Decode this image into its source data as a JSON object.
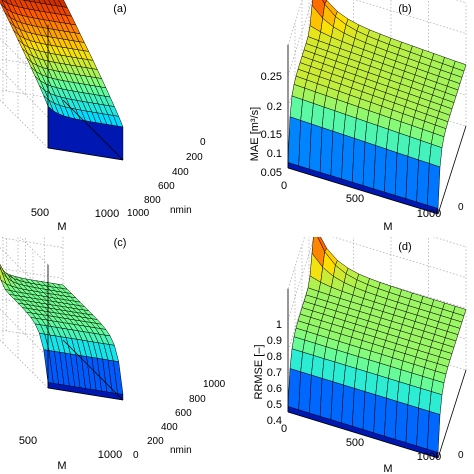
{
  "colors": {
    "colormap": [
      "#00008f",
      "#0050ff",
      "#00dfff",
      "#70ff8f",
      "#ffdf00",
      "#ff5000",
      "#800000"
    ],
    "axis": "#000000",
    "grid_line": "#999999",
    "mesh_edge": "#000000"
  },
  "panels": [
    {
      "id": "a",
      "label": "(a)",
      "x_axis": {
        "label": "M",
        "ticks": [
          "500",
          "1000"
        ]
      },
      "y_axis": {
        "label": "nmin",
        "ticks": [
          "0",
          "200",
          "400",
          "600",
          "800",
          "1000"
        ]
      },
      "z_axis": {
        "label": "",
        "ticks": []
      }
    },
    {
      "id": "b",
      "label": "(b)",
      "x_axis": {
        "label": "M",
        "ticks": [
          "0",
          "500",
          "1000"
        ]
      },
      "y_axis": {
        "label": "",
        "ticks": [
          "0"
        ]
      },
      "z_axis": {
        "label": "MAE [m³/s]",
        "ticks": [
          "0.05",
          "0.1",
          "0.15",
          "0.2",
          "0.25"
        ]
      }
    },
    {
      "id": "c",
      "label": "(c)",
      "x_axis": {
        "label": "M",
        "ticks": [
          "500",
          "1000"
        ]
      },
      "y_axis": {
        "label": "nmin",
        "ticks": [
          "0",
          "200",
          "400",
          "600",
          "800",
          "1000"
        ]
      },
      "z_axis": {
        "label": "",
        "ticks": []
      }
    },
    {
      "id": "d",
      "label": "(d)",
      "x_axis": {
        "label": "M",
        "ticks": [
          "0",
          "500",
          "1000"
        ]
      },
      "y_axis": {
        "label": "",
        "ticks": [
          "0"
        ]
      },
      "z_axis": {
        "label": "RRMSE [–]",
        "ticks": [
          "0.4",
          "0.5",
          "0.6",
          "0.7",
          "0.8",
          "0.9",
          "1"
        ]
      }
    }
  ],
  "chart_data": [
    {
      "panel": "a",
      "type": "surface",
      "xlabel": "M",
      "ylabel": "nmin",
      "zlabel": "",
      "xlim": [
        0,
        1000
      ],
      "ylim": [
        0,
        1000
      ],
      "zlim": [
        0,
        1
      ],
      "grid": true,
      "x": [
        0,
        100,
        200,
        300,
        400,
        500,
        600,
        700,
        800,
        900,
        1000
      ],
      "y": [
        0,
        100,
        200,
        300,
        400,
        500,
        600,
        700,
        800,
        900,
        1000
      ],
      "description_values": {
        "z_at_nmin_1000": 0.95,
        "z_at_nmin_0": 0.35
      }
    },
    {
      "panel": "b",
      "type": "surface",
      "xlabel": "M",
      "ylabel": "",
      "zlabel": "MAE [m³/s]",
      "xlim": [
        0,
        1000
      ],
      "ylim": [
        0,
        1000
      ],
      "zlim": [
        0.05,
        0.25
      ],
      "grid": true,
      "x": [
        0,
        100,
        200,
        300,
        400,
        500,
        600,
        700,
        800,
        900,
        1000
      ],
      "y": [
        0,
        100,
        200,
        300,
        400,
        500,
        600,
        700,
        800,
        900,
        1000
      ],
      "description_values": {
        "z_plateau": 0.17,
        "z_peak_small_M": 0.24,
        "z_min": 0.08
      }
    },
    {
      "panel": "c",
      "type": "surface",
      "xlabel": "M",
      "ylabel": "nmin",
      "zlabel": "",
      "xlim": [
        0,
        1000
      ],
      "ylim": [
        0,
        1000
      ],
      "zlim": [
        0,
        1
      ],
      "grid": true,
      "x": [
        0,
        100,
        200,
        300,
        400,
        500,
        600,
        700,
        800,
        900,
        1000
      ],
      "y": [
        0,
        100,
        200,
        300,
        400,
        500,
        600,
        700,
        800,
        900,
        1000
      ],
      "description_values": {
        "z_plateau": 0.5,
        "z_peak_small_M": 0.85,
        "z_min": 0.1
      }
    },
    {
      "panel": "d",
      "type": "surface",
      "xlabel": "M",
      "ylabel": "",
      "zlabel": "RRMSE [–]",
      "xlim": [
        0,
        1000
      ],
      "ylim": [
        0,
        1000
      ],
      "zlim": [
        0.35,
        1
      ],
      "grid": true,
      "x": [
        0,
        100,
        200,
        300,
        400,
        500,
        600,
        700,
        800,
        900,
        1000
      ],
      "y": [
        0,
        100,
        200,
        300,
        400,
        500,
        600,
        700,
        800,
        900,
        1000
      ],
      "description_values": {
        "z_plateau": 0.62,
        "z_peak_small_M": 0.95,
        "z_min": 0.4
      }
    }
  ]
}
